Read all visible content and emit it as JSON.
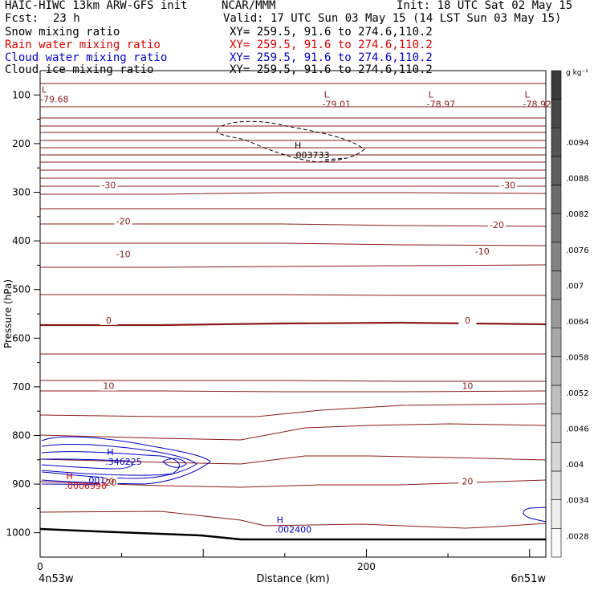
{
  "header": {
    "model_line": "HAIC-HIWC 13km ARW-GFS init",
    "center": "NCAR/MMM",
    "init": "Init: 18 UTC Sat 02 May 15",
    "fcst_label": "Fcst:",
    "fcst_value": "23 h",
    "valid": "Valid: 17 UTC Sun 03 May 15 (14 LST Sun 03 May 15)"
  },
  "legend": [
    {
      "label": "Snow mixing ratio",
      "xy": "XY= 259.5, 91.6 to 274.6,110.2",
      "color": "#000000"
    },
    {
      "label": "Rain water mixing ratio",
      "xy": "XY= 259.5, 91.6 to 274.6,110.2",
      "color": "#dd0000"
    },
    {
      "label": "Cloud water mixing ratio",
      "xy": "XY= 259.5, 91.6 to 274.6,110.2",
      "color": "#0000cc"
    },
    {
      "label": "Cloud ice mixing ratio",
      "xy": "XY= 259.5, 91.6 to 274.6,110.2",
      "color": "#000000"
    }
  ],
  "chart_data": {
    "type": "contour-cross-section",
    "ylabel": "Pressure (hPa)",
    "xlabel": "Distance (km)",
    "x_ticks": [
      "0",
      "200"
    ],
    "y_ticks": [
      "100",
      "200",
      "300",
      "400",
      "500",
      "600",
      "700",
      "800",
      "900",
      "1000"
    ],
    "xlim": [
      0,
      310
    ],
    "ylim": [
      50,
      1050
    ],
    "x_start_label": "4n53w",
    "x_end_label": "6n51w",
    "colorbar": {
      "unit": "g kg⁻¹",
      "labels": [
        ".0094",
        ".0088",
        ".0082",
        ".0076",
        ".007",
        ".0064",
        ".0058",
        ".0052",
        ".0046",
        ".004",
        ".0034",
        ".0028"
      ]
    },
    "temperature_contour_labels": [
      {
        "text": "-30",
        "x": 42,
        "p": 290
      },
      {
        "text": "-30",
        "x": 287,
        "p": 290
      },
      {
        "text": "-20",
        "x": 51,
        "p": 364
      },
      {
        "text": "-20",
        "x": 280,
        "p": 372
      },
      {
        "text": "-10",
        "x": 51,
        "p": 432
      },
      {
        "text": "-10",
        "x": 271,
        "p": 426
      },
      {
        "text": "0",
        "x": 42,
        "p": 568
      },
      {
        "text": "0",
        "x": 262,
        "p": 568
      },
      {
        "text": "10",
        "x": 42,
        "p": 703
      },
      {
        "text": "10",
        "x": 262,
        "p": 703
      },
      {
        "text": "20",
        "x": 42,
        "p": 899
      },
      {
        "text": "20",
        "x": 262,
        "p": 899
      }
    ],
    "extrema": [
      {
        "kind": "L",
        "value": "-79.68",
        "x": 0,
        "p": 100,
        "color": "#8b1a1a"
      },
      {
        "kind": "L",
        "value": "-79.01",
        "x": 173,
        "p": 110,
        "color": "#8b1a1a"
      },
      {
        "kind": "L",
        "value": "-78.97",
        "x": 237,
        "p": 110,
        "color": "#8b1a1a"
      },
      {
        "kind": "L",
        "value": "-78.92",
        "x": 296,
        "p": 110,
        "color": "#8b1a1a"
      },
      {
        "kind": "H",
        "value": ".003733",
        "x": 155,
        "p": 215,
        "color": "#000000"
      },
      {
        "kind": "H",
        "value": ".346225",
        "x": 40,
        "p": 845,
        "color": "#0000cc"
      },
      {
        "kind": "H",
        "value": ".0006996",
        "x": 15,
        "p": 895,
        "color": "#dd0000"
      },
      {
        "kind": "H",
        "value": ".002400",
        "x": 144,
        "p": 985,
        "color": "#0000cc"
      }
    ],
    "inline_labels": [
      {
        "text": ".001",
        "x": 28,
        "p": 898,
        "color": "#0000cc"
      },
      {
        "text": "20",
        "x": 40,
        "p": 903,
        "color": "#8b1a1a"
      }
    ]
  }
}
